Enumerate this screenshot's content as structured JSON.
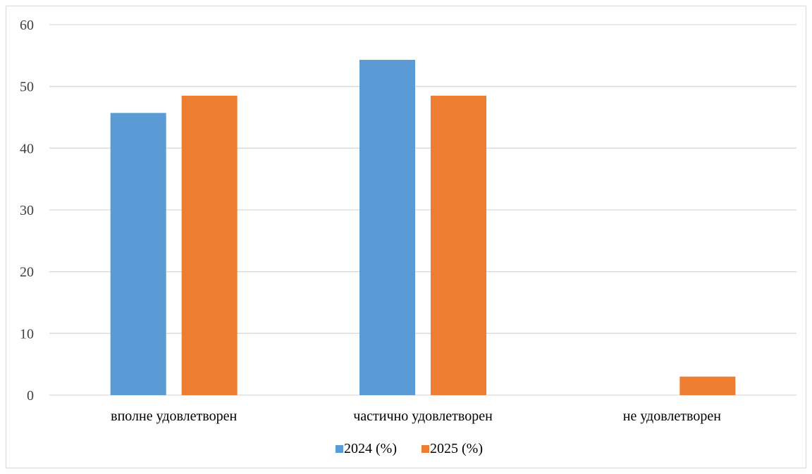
{
  "chart_data": {
    "type": "bar",
    "categories": [
      "вполне удовлетворен",
      "частично удовлетворен",
      "не удовлетворен"
    ],
    "series": [
      {
        "name": "2024 (%)",
        "values": [
          45.7,
          54.3,
          0
        ],
        "color": "#5b9bd5"
      },
      {
        "name": "2025 (%)",
        "values": [
          48.5,
          48.5,
          3.0
        ],
        "color": "#ed7d31"
      }
    ],
    "title": "",
    "xlabel": "",
    "ylabel": "",
    "ylim": [
      0,
      60
    ],
    "yticks": [
      0,
      10,
      20,
      30,
      40,
      50,
      60
    ],
    "grid": true,
    "legend": "bottom-center"
  }
}
